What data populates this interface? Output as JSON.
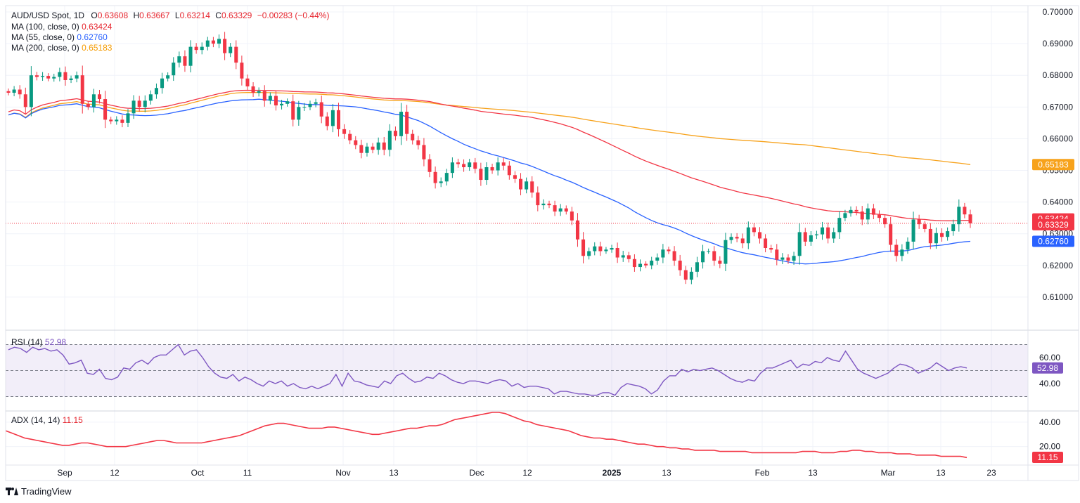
{
  "header": {
    "symbol": "AUD/USD Spot, 1D",
    "open_label": "O",
    "open": "0.63608",
    "high_label": "H",
    "high": "0.63667",
    "low_label": "L",
    "low": "0.63214",
    "close_label": "C",
    "close": "0.63329",
    "change": "−0.00283 (−0.44%)"
  },
  "indicators": {
    "ma100": {
      "label": "MA (100, close, 0)",
      "value": "0.63424",
      "color": "#f23645"
    },
    "ma55": {
      "label": "MA (55, close, 0)",
      "value": "0.62760",
      "color": "#2962ff"
    },
    "ma200": {
      "label": "MA (200, close, 0)",
      "value": "0.65183",
      "color": "#f7a21b"
    },
    "rsi": {
      "label": "RSI (14)",
      "value": "52.98",
      "color": "#7e57c2"
    },
    "adx": {
      "label": "ADX (14, 14)",
      "value": "11.15",
      "color": "#f23645"
    }
  },
  "branding": {
    "name": "TradingView"
  },
  "chart_data": {
    "type": "candlestick",
    "title": "AUD/USD Spot, 1D",
    "x_ticks": [
      "Sep",
      "12",
      "Oct",
      "11",
      "Nov",
      "13",
      "Dec",
      "12",
      "2025",
      "13",
      "Feb",
      "13",
      "Mar",
      "13",
      "23"
    ],
    "y_ticks": [
      "0.70000",
      "0.69000",
      "0.68000",
      "0.67000",
      "0.66000",
      "0.65000",
      "0.64000",
      "0.63000",
      "0.62000",
      "0.61000"
    ],
    "ylim": [
      0.6,
      0.702
    ],
    "price_tags": [
      {
        "value": "0.65183",
        "color": "#f7a21b"
      },
      {
        "value": "0.63424",
        "color": "#f23645"
      },
      {
        "value": "0.63329",
        "color": "#f23645"
      },
      {
        "value": "0.62760",
        "color": "#2962ff"
      }
    ],
    "last_close": 0.63329,
    "ma100_value": 0.63424,
    "ma55_value": 0.6276,
    "ma200_value": 0.65183,
    "closes": [
      0.6745,
      0.6755,
      0.674,
      0.67,
      0.68,
      0.6795,
      0.6798,
      0.679,
      0.6795,
      0.681,
      0.6785,
      0.679,
      0.68,
      0.671,
      0.67,
      0.674,
      0.6725,
      0.666,
      0.6655,
      0.666,
      0.665,
      0.668,
      0.672,
      0.67,
      0.672,
      0.674,
      0.676,
      0.679,
      0.68,
      0.684,
      0.686,
      0.683,
      0.689,
      0.688,
      0.689,
      0.691,
      0.69,
      0.6915,
      0.687,
      0.689,
      0.684,
      0.679,
      0.6765,
      0.6745,
      0.675,
      0.672,
      0.6735,
      0.6705,
      0.671,
      0.6718,
      0.666,
      0.67,
      0.67,
      0.671,
      0.6715,
      0.667,
      0.664,
      0.669,
      0.663,
      0.6615,
      0.6595,
      0.658,
      0.6555,
      0.6575,
      0.6565,
      0.6588,
      0.6565,
      0.6625,
      0.6608,
      0.6685,
      0.6615,
      0.6595,
      0.658,
      0.6535,
      0.6495,
      0.646,
      0.6465,
      0.6492,
      0.6525,
      0.652,
      0.651,
      0.6525,
      0.6505,
      0.647,
      0.651,
      0.65,
      0.6525,
      0.6515,
      0.6485,
      0.6473,
      0.644,
      0.6465,
      0.643,
      0.639,
      0.6395,
      0.639,
      0.637,
      0.638,
      0.637,
      0.6342,
      0.6282,
      0.623,
      0.6245,
      0.626,
      0.6245,
      0.625,
      0.6255,
      0.6225,
      0.6232,
      0.622,
      0.6195,
      0.6205,
      0.62,
      0.6215,
      0.6225,
      0.625,
      0.6245,
      0.6215,
      0.6185,
      0.6155,
      0.618,
      0.621,
      0.6245,
      0.6245,
      0.6215,
      0.6205,
      0.628,
      0.629,
      0.6285,
      0.627,
      0.632,
      0.6305,
      0.6285,
      0.6255,
      0.625,
      0.6218,
      0.6225,
      0.6215,
      0.623,
      0.6305,
      0.6275,
      0.6295,
      0.6298,
      0.632,
      0.6285,
      0.6305,
      0.635,
      0.6365,
      0.6375,
      0.637,
      0.6345,
      0.638,
      0.636,
      0.635,
      0.633,
      0.6265,
      0.623,
      0.625,
      0.6275,
      0.6345,
      0.633,
      0.6315,
      0.627,
      0.6302,
      0.629,
      0.6308,
      0.633,
      0.6385,
      0.6361,
      0.6333
    ],
    "rsi_values": [
      66,
      68,
      67,
      64,
      68,
      66,
      67,
      65,
      66,
      62,
      55,
      56,
      58,
      48,
      47,
      51,
      44,
      43,
      45,
      52,
      51,
      56,
      58,
      55,
      60,
      62,
      62,
      66,
      70,
      62,
      65,
      66,
      60,
      53,
      48,
      45,
      44,
      47,
      42,
      45,
      43,
      40,
      38,
      42,
      40,
      42,
      38,
      40,
      37,
      36,
      38,
      36,
      38,
      40,
      47,
      38,
      48,
      42,
      41,
      39,
      38,
      37,
      42,
      40,
      46,
      48,
      44,
      41,
      42,
      45,
      44,
      48,
      46,
      43,
      41,
      40,
      42,
      42,
      41,
      40,
      42,
      43,
      42,
      38,
      40,
      37,
      38,
      38,
      37,
      36,
      32,
      34,
      34,
      33,
      32,
      32,
      31,
      31,
      33,
      33,
      31,
      37,
      40,
      39,
      38,
      36,
      32,
      35,
      42,
      46,
      46,
      51,
      49,
      51,
      50,
      51,
      52,
      50,
      47,
      44,
      42,
      41,
      43,
      42,
      48,
      52,
      52,
      54,
      56,
      58,
      52,
      55,
      54,
      57,
      56,
      60,
      58,
      57,
      65,
      58,
      51,
      48,
      46,
      44,
      46,
      48,
      52,
      55,
      54,
      52,
      48,
      50,
      52,
      56,
      53,
      50,
      52,
      53,
      52
    ],
    "rsi_range": [
      20,
      80
    ],
    "rsi_lines": [
      70,
      50,
      30
    ],
    "adx_values": [
      33,
      31,
      29,
      27,
      26,
      25,
      24,
      23,
      22,
      21,
      21,
      22,
      23,
      23,
      22,
      21,
      20,
      20,
      20,
      20,
      21,
      22,
      23,
      24,
      25,
      25,
      24,
      23,
      23,
      23,
      23,
      23,
      24,
      25,
      26,
      27,
      28,
      29,
      31,
      33,
      35,
      37,
      38,
      39,
      39,
      38,
      37,
      36,
      35,
      35,
      35,
      36,
      36,
      35,
      34,
      33,
      32,
      31,
      30,
      30,
      31,
      32,
      33,
      34,
      35,
      35,
      36,
      37,
      37,
      38,
      40,
      42,
      43,
      44,
      45,
      46,
      47,
      48,
      48,
      47,
      45,
      43,
      41,
      40,
      38,
      37,
      36,
      35,
      34,
      33,
      31,
      29,
      28,
      27,
      27,
      26,
      26,
      25,
      24,
      23,
      22,
      22,
      21,
      20,
      20,
      19,
      19,
      18,
      18,
      17,
      17,
      17,
      17,
      16,
      16,
      16,
      16,
      16,
      15,
      15,
      15,
      15,
      15,
      15,
      15,
      15,
      16,
      16,
      16,
      15,
      15,
      15,
      16,
      16,
      17,
      17,
      16,
      16,
      15,
      15,
      15,
      14,
      14,
      14,
      13,
      13,
      13,
      13,
      12,
      12,
      12,
      12,
      11
    ],
    "adx_ticks": [
      "40.00",
      "20.00"
    ],
    "rsi_ticks": [
      "60.00",
      "40.00"
    ]
  }
}
